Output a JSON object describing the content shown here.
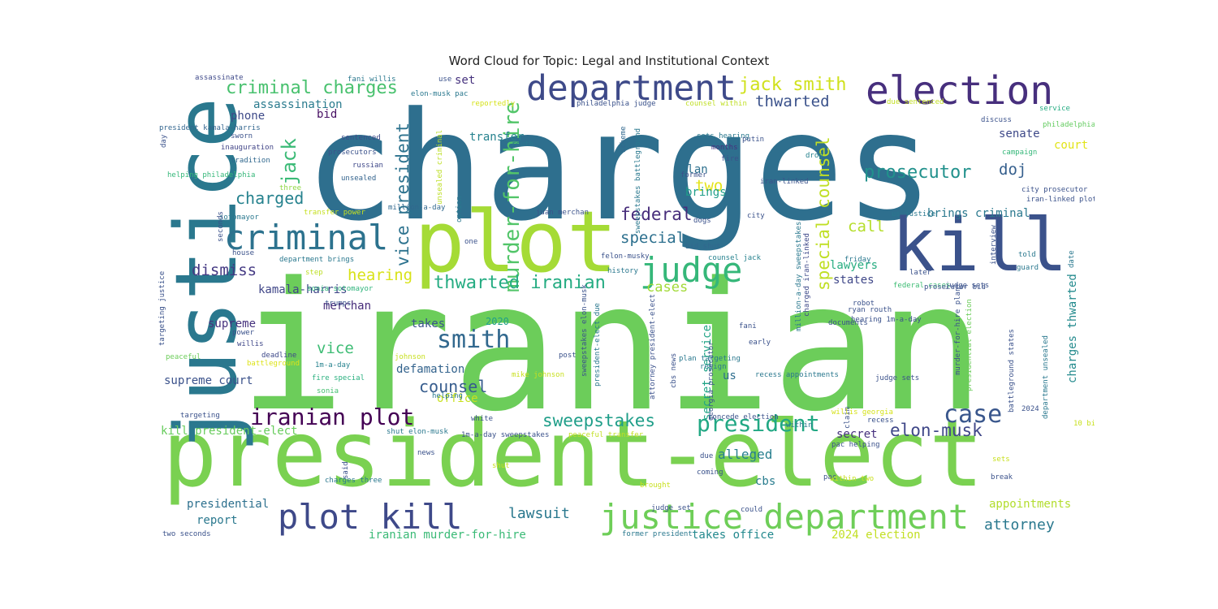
{
  "title": "Word Cloud for Topic: Legal and Institutional Context",
  "words": [
    {
      "text": "charges",
      "color": "#2e6f8e"
    },
    {
      "text": "iranian",
      "color": "#6ccd5a"
    },
    {
      "text": "president-elect",
      "color": "#7ad151"
    },
    {
      "text": "justice",
      "color": "#2a788e"
    },
    {
      "text": "plot",
      "color": "#a5db36"
    },
    {
      "text": "kill",
      "color": "#3b528b"
    },
    {
      "text": "department",
      "color": "#3e4a89"
    },
    {
      "text": "election",
      "color": "#472f7d"
    },
    {
      "text": "criminal",
      "color": "#2c728e"
    },
    {
      "text": "judge",
      "color": "#35b779"
    },
    {
      "text": "justice department",
      "color": "#6ece58"
    },
    {
      "text": "plot kill",
      "color": "#3e4989"
    },
    {
      "text": "iranian plot",
      "color": "#440154"
    },
    {
      "text": "president",
      "color": "#22a884"
    },
    {
      "text": "case",
      "color": "#39568c"
    },
    {
      "text": "smith",
      "color": "#31688e"
    },
    {
      "text": "murder-for-hire",
      "color": "#52c569"
    },
    {
      "text": "criminal charges",
      "color": "#48c16e"
    },
    {
      "text": "jack smith",
      "color": "#d0e11c"
    },
    {
      "text": "thwarted iranian",
      "color": "#25ac82"
    },
    {
      "text": "prosecutor",
      "color": "#21918c"
    },
    {
      "text": "vice president",
      "color": "#2c728e"
    },
    {
      "text": "jack",
      "color": "#3aba76"
    },
    {
      "text": "special counsel",
      "color": "#c0df25"
    },
    {
      "text": "sweepstakes",
      "color": "#1f9e89"
    },
    {
      "text": "elon-musk",
      "color": "#3f4788"
    },
    {
      "text": "counsel",
      "color": "#365c8d"
    },
    {
      "text": "charged",
      "color": "#26828e"
    },
    {
      "text": "federal",
      "color": "#472d7b"
    },
    {
      "text": "thwarted",
      "color": "#3b528b"
    },
    {
      "text": "dismiss",
      "color": "#443983"
    },
    {
      "text": "special",
      "color": "#2d708e"
    },
    {
      "text": "hearing",
      "color": "#d8e219"
    },
    {
      "text": "vice",
      "color": "#3dbc74"
    },
    {
      "text": "call",
      "color": "#b5de2b"
    },
    {
      "text": "two",
      "color": "#e5e419"
    },
    {
      "text": "doj",
      "color": "#355f8d"
    },
    {
      "text": "lawsuit",
      "color": "#2a788e"
    },
    {
      "text": "attorney",
      "color": "#2a788e"
    },
    {
      "text": "cases",
      "color": "#a2da37"
    },
    {
      "text": "alleged",
      "color": "#277f8e"
    },
    {
      "text": "court",
      "color": "#e2e418"
    },
    {
      "text": "senate",
      "color": "#3e4989"
    },
    {
      "text": "kamala-harris",
      "color": "#404688"
    },
    {
      "text": "supreme court",
      "color": "#3b528b"
    },
    {
      "text": "supreme",
      "color": "#46327e"
    },
    {
      "text": "merchan",
      "color": "#472c7a"
    },
    {
      "text": "takes",
      "color": "#3a548c"
    },
    {
      "text": "2020",
      "color": "#1fa088"
    },
    {
      "text": "defamation",
      "color": "#33638d"
    },
    {
      "text": "presidential",
      "color": "#2d708e"
    },
    {
      "text": "report",
      "color": "#2a788e"
    },
    {
      "text": "takes office",
      "color": "#23898e"
    },
    {
      "text": "2024 election",
      "color": "#c2df23"
    },
    {
      "text": "iranian murder-for-hire",
      "color": "#3aba76"
    },
    {
      "text": "brings criminal",
      "color": "#2a788e"
    },
    {
      "text": "assassination",
      "color": "#2a7b8e"
    },
    {
      "text": "phone",
      "color": "#3e4a89"
    },
    {
      "text": "bid",
      "color": "#471063"
    },
    {
      "text": "set",
      "color": "#46327e"
    },
    {
      "text": "president",
      "color": "#26828e"
    },
    {
      "text": "transfer",
      "color": "#26828e"
    },
    {
      "text": "plan",
      "color": "#2d708e"
    },
    {
      "text": "brings",
      "color": "#1f9e89"
    },
    {
      "text": "states",
      "color": "#3f4788"
    },
    {
      "text": "lawyers",
      "color": "#27ad81"
    },
    {
      "text": "appointments",
      "color": "#b2dd2d"
    },
    {
      "text": "secret",
      "color": "#46307e"
    },
    {
      "text": "cbs",
      "color": "#287c8e"
    },
    {
      "text": "us",
      "color": "#2e6e8e"
    },
    {
      "text": "office",
      "color": "#c8e020"
    },
    {
      "text": "secret service",
      "color": "#20a486"
    },
    {
      "text": "charges thwarted",
      "color": "#238a8d"
    },
    {
      "text": "kill president-elect",
      "color": "#67cc5c"
    },
    {
      "text": "assassinate",
      "color": "#3e4989"
    },
    {
      "text": "fani willis",
      "color": "#2a788e"
    },
    {
      "text": "president kamala-harris",
      "color": "#32658e"
    },
    {
      "text": "sworn",
      "color": "#3b528b"
    },
    {
      "text": "inauguration",
      "color": "#414487"
    },
    {
      "text": "tradition",
      "color": "#31688e"
    },
    {
      "text": "helping philadelphia",
      "color": "#35b779"
    },
    {
      "text": "sentenced",
      "color": "#3e4a89"
    },
    {
      "text": "prosecutors",
      "color": "#3b528b"
    },
    {
      "text": "russian",
      "color": "#3f4889"
    },
    {
      "text": "unsealed",
      "color": "#33638d"
    },
    {
      "text": "three",
      "color": "#8fd744"
    },
    {
      "text": "sotomayor",
      "color": "#2a788e"
    },
    {
      "text": "transfer power",
      "color": "#c5e021"
    },
    {
      "text": "million-a-day",
      "color": "#31688e"
    },
    {
      "text": "house",
      "color": "#3b528b"
    },
    {
      "text": "department brings",
      "color": "#2a788e"
    },
    {
      "text": "step",
      "color": "#bddf26"
    },
    {
      "text": "sonia sotomayor",
      "color": "#2fb47c"
    },
    {
      "text": "trumps",
      "color": "#3b528b"
    },
    {
      "text": "power",
      "color": "#3b528b"
    },
    {
      "text": "willis",
      "color": "#3f4788"
    },
    {
      "text": "peaceful",
      "color": "#6ccd5a"
    },
    {
      "text": "deadline",
      "color": "#3e4989"
    },
    {
      "text": "battleground",
      "color": "#dde318"
    },
    {
      "text": "1m-a-day",
      "color": "#26828e"
    },
    {
      "text": "fire special",
      "color": "#2ab07f"
    },
    {
      "text": "sonia",
      "color": "#44bf70"
    },
    {
      "text": "targeting",
      "color": "#3b528b"
    },
    {
      "text": "day",
      "color": "#3b528b"
    },
    {
      "text": "seconds",
      "color": "#3b528b"
    },
    {
      "text": "targeting justice",
      "color": "#3b528b"
    },
    {
      "text": "use",
      "color": "#3b528b"
    },
    {
      "text": "elon-musk pac",
      "color": "#2a788e"
    },
    {
      "text": "reportedly",
      "color": "#d5e21a"
    },
    {
      "text": "philadelphia judge",
      "color": "#3b528b"
    },
    {
      "text": "counsel within",
      "color": "#c0df25"
    },
    {
      "text": "due sentenced",
      "color": "#c2df23"
    },
    {
      "text": "service",
      "color": "#25ac82"
    },
    {
      "text": "philadelphia",
      "color": "#63cb5f"
    },
    {
      "text": "discuss",
      "color": "#3b528b"
    },
    {
      "text": "sets hearing",
      "color": "#2a788e"
    },
    {
      "text": "months",
      "color": "#46327e"
    },
    {
      "text": "putin",
      "color": "#3b528b"
    },
    {
      "text": "fire",
      "color": "#3b528b"
    },
    {
      "text": "campaign",
      "color": "#35b779"
    },
    {
      "text": "routh",
      "color": "#2a788e"
    },
    {
      "text": "scheme",
      "color": "#31688e"
    },
    {
      "text": "drop",
      "color": "#26828e"
    },
    {
      "text": "city prosecutor",
      "color": "#3b528b"
    },
    {
      "text": "iran-linked plot",
      "color": "#3b528b"
    },
    {
      "text": "iran-linked",
      "color": "#3b528b"
    },
    {
      "text": "former",
      "color": "#3b528b"
    },
    {
      "text": "juan merchan",
      "color": "#3b528b"
    },
    {
      "text": "city",
      "color": "#3b528b"
    },
    {
      "text": "dogs",
      "color": "#3b528b"
    },
    {
      "text": "one",
      "color": "#3b528b"
    },
    {
      "text": "option",
      "color": "#2a788e"
    },
    {
      "text": "sweepstakes battleground",
      "color": "#2a788e"
    },
    {
      "text": "unsealed criminal",
      "color": "#bddf26"
    },
    {
      "text": "us justice",
      "color": "#2a788e"
    },
    {
      "text": "bid shut",
      "color": "#31688e"
    },
    {
      "text": "counsel jack",
      "color": "#26828e"
    },
    {
      "text": "felon-musky",
      "color": "#3b528b"
    },
    {
      "text": "history",
      "color": "#2a788e"
    },
    {
      "text": "charged iran-linked",
      "color": "#3e4989"
    },
    {
      "text": "interview",
      "color": "#3b528b"
    },
    {
      "text": "told",
      "color": "#2a788e"
    },
    {
      "text": "friday",
      "color": "#2a788e"
    },
    {
      "text": "guard",
      "color": "#2a788e"
    },
    {
      "text": "date",
      "color": "#2a788e"
    },
    {
      "text": "later",
      "color": "#3b528b"
    },
    {
      "text": "robot",
      "color": "#3b528b"
    },
    {
      "text": "judge sets",
      "color": "#3b528b"
    },
    {
      "text": "federal cases",
      "color": "#3dbc74"
    },
    {
      "text": "million-a-day sweepstakes",
      "color": "#2a788e"
    },
    {
      "text": "hearing 1m-a-day",
      "color": "#3b528b"
    },
    {
      "text": "documents",
      "color": "#3b528b"
    },
    {
      "text": "ryan routh",
      "color": "#3b528b"
    },
    {
      "text": "post",
      "color": "#3b528b"
    },
    {
      "text": "fani",
      "color": "#3b528b"
    },
    {
      "text": "early",
      "color": "#3b528b"
    },
    {
      "text": "plan targeting",
      "color": "#2a788e"
    },
    {
      "text": "cbs news",
      "color": "#3b528b"
    },
    {
      "text": "resign",
      "color": "#2a788e"
    },
    {
      "text": "recess appointments",
      "color": "#2a788e"
    },
    {
      "text": "attorney president-elect",
      "color": "#3b528b"
    },
    {
      "text": "georgia prosecutor",
      "color": "#3b528b"
    },
    {
      "text": "claim",
      "color": "#3b528b"
    },
    {
      "text": "judge sets",
      "color": "#3b528b"
    },
    {
      "text": "prosecutor bid",
      "color": "#3b528b"
    },
    {
      "text": "murder-for-hire plan",
      "color": "#3b528b"
    },
    {
      "text": "presidential election",
      "color": "#6ccd5a"
    },
    {
      "text": "battleground states",
      "color": "#3b528b"
    },
    {
      "text": "department unsealed",
      "color": "#2a788e"
    },
    {
      "text": "sweepstakes elon-musk",
      "color": "#3b528b"
    },
    {
      "text": "president-elect due",
      "color": "#2a788e"
    },
    {
      "text": "johnson",
      "color": "#c8e020"
    },
    {
      "text": "mike johnson",
      "color": "#c8e020"
    },
    {
      "text": "helping",
      "color": "#2a788e"
    },
    {
      "text": "white",
      "color": "#3b528b"
    },
    {
      "text": "shut elon-musk",
      "color": "#2a788e"
    },
    {
      "text": "1m-a-day sweepstakes",
      "color": "#3b528b"
    },
    {
      "text": "peaceful transfer",
      "color": "#c2df23"
    },
    {
      "text": "concede election",
      "color": "#3b528b"
    },
    {
      "text": "willis georgia",
      "color": "#d5e21a"
    },
    {
      "text": "recess",
      "color": "#3b528b"
    },
    {
      "text": "within",
      "color": "#2a788e"
    },
    {
      "text": "pac helping",
      "color": "#3b528b"
    },
    {
      "text": "2024",
      "color": "#3b528b"
    },
    {
      "text": "10 billion",
      "color": "#c8e020"
    },
    {
      "text": "sets",
      "color": "#c8e020"
    },
    {
      "text": "break",
      "color": "#3b528b"
    },
    {
      "text": "news",
      "color": "#3b528b"
    },
    {
      "text": "shut",
      "color": "#c8e020"
    },
    {
      "text": "due",
      "color": "#3b528b"
    },
    {
      "text": "coming",
      "color": "#3b528b"
    },
    {
      "text": "pac",
      "color": "#3b528b"
    },
    {
      "text": "charges three",
      "color": "#2a788e"
    },
    {
      "text": "said",
      "color": "#3b528b"
    },
    {
      "text": "brought",
      "color": "#c8e020"
    },
    {
      "text": "judge set",
      "color": "#3b528b"
    },
    {
      "text": "could",
      "color": "#3b528b"
    },
    {
      "text": "within two",
      "color": "#c8e020"
    },
    {
      "text": "former president",
      "color": "#2a788e"
    },
    {
      "text": "two seconds",
      "color": "#3b528b"
    },
    {
      "text": "elon-musk million-a-day",
      "color": "#3b528b"
    }
  ]
}
